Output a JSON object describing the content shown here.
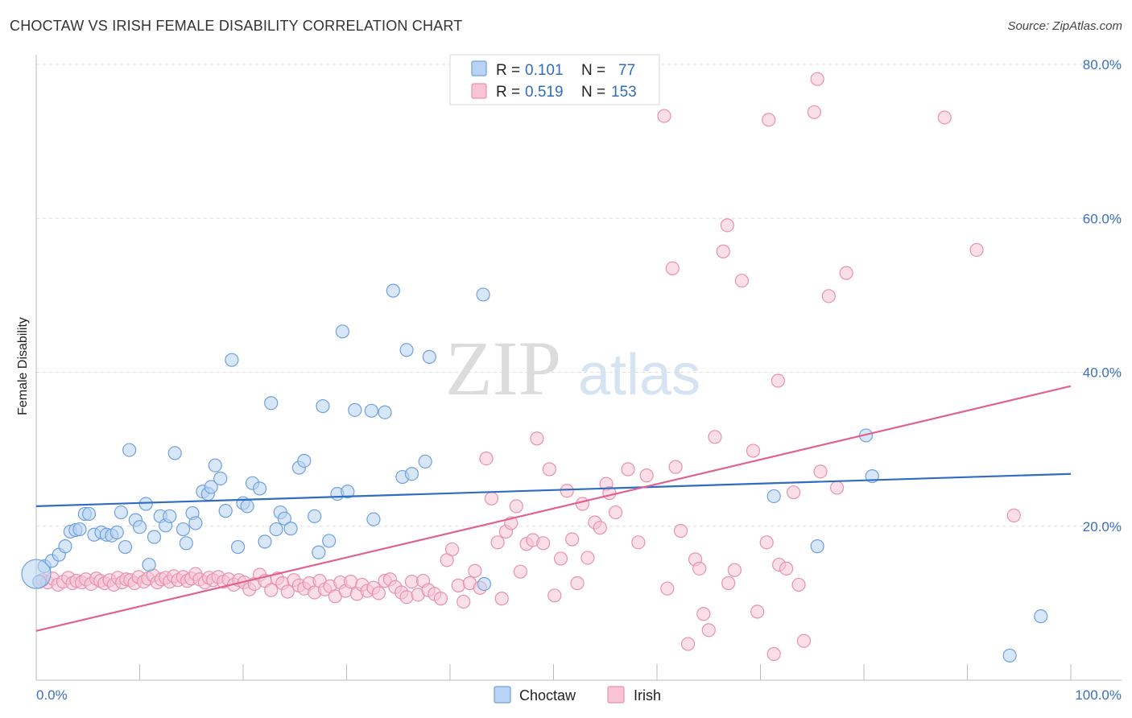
{
  "title": "CHOCTAW VS IRISH FEMALE DISABILITY CORRELATION CHART",
  "source": "Source: ZipAtlas.com",
  "watermark": {
    "zip": "ZIP",
    "atlas": "atlas"
  },
  "colors": {
    "choctaw_fill": "#b8d3f3",
    "choctaw_stroke": "#6fa0dd",
    "choctaw_line": "#2f6cc4",
    "irish_fill": "#f8c4d5",
    "irish_stroke": "#e891ad",
    "irish_line": "#e0628f",
    "grid": "#dddddd",
    "tick_label": "#3a6fc4"
  },
  "legend": {
    "r_label": "R =",
    "n_label": "N =",
    "rows": [
      {
        "series": "Choctaw",
        "r": "0.101",
        "n": "77"
      },
      {
        "series": "Irish",
        "r": "0.519",
        "n": "153"
      }
    ]
  },
  "bottom_legend": [
    "Choctaw",
    "Irish"
  ],
  "chart_data": {
    "type": "scatter",
    "title": "CHOCTAW VS IRISH FEMALE DISABILITY CORRELATION CHART",
    "xlabel": "",
    "ylabel": "Female Disability",
    "xlim": [
      0,
      100
    ],
    "ylim": [
      0,
      80
    ],
    "x_tick_labels": [
      "0.0%",
      "100.0%"
    ],
    "y_ticks": [
      20,
      40,
      60,
      80
    ],
    "y_tick_labels": [
      "20.0%",
      "40.0%",
      "60.0%",
      "80.0%"
    ],
    "grid": true,
    "series": [
      {
        "name": "Choctaw",
        "r": 0.101,
        "n": 77,
        "trend": {
          "x0": 0,
          "y0": 22.6,
          "x1": 100,
          "y1": 26.8
        },
        "points": [
          [
            0.3,
            12.8
          ],
          [
            0.8,
            14.8
          ],
          [
            1.5,
            15.5
          ],
          [
            2.2,
            16.3
          ],
          [
            2.8,
            17.4
          ],
          [
            3.3,
            19.3
          ],
          [
            3.8,
            19.5
          ],
          [
            4.2,
            19.6
          ],
          [
            4.7,
            21.6
          ],
          [
            5.1,
            21.6
          ],
          [
            5.6,
            18.9
          ],
          [
            6.3,
            19.2
          ],
          [
            6.8,
            18.9
          ],
          [
            7.3,
            18.8
          ],
          [
            7.8,
            19.2
          ],
          [
            8.2,
            21.8
          ],
          [
            8.6,
            17.3
          ],
          [
            9.0,
            29.9
          ],
          [
            9.6,
            20.8
          ],
          [
            10.0,
            19.9
          ],
          [
            10.6,
            22.9
          ],
          [
            10.9,
            15.0
          ],
          [
            11.4,
            18.6
          ],
          [
            12.0,
            21.3
          ],
          [
            12.5,
            20.1
          ],
          [
            12.9,
            21.3
          ],
          [
            13.4,
            29.5
          ],
          [
            14.2,
            19.6
          ],
          [
            14.5,
            17.8
          ],
          [
            15.1,
            21.7
          ],
          [
            15.4,
            20.4
          ],
          [
            16.1,
            24.5
          ],
          [
            16.6,
            24.2
          ],
          [
            16.9,
            25.1
          ],
          [
            17.3,
            27.9
          ],
          [
            17.8,
            26.2
          ],
          [
            18.3,
            22.0
          ],
          [
            18.9,
            41.6
          ],
          [
            19.5,
            17.3
          ],
          [
            20.0,
            23.0
          ],
          [
            20.4,
            22.6
          ],
          [
            20.9,
            25.6
          ],
          [
            21.6,
            24.9
          ],
          [
            22.1,
            18.0
          ],
          [
            22.7,
            36.0
          ],
          [
            23.2,
            19.6
          ],
          [
            23.6,
            21.8
          ],
          [
            24.0,
            21.0
          ],
          [
            24.6,
            19.7
          ],
          [
            25.4,
            27.6
          ],
          [
            25.9,
            28.5
          ],
          [
            26.9,
            21.3
          ],
          [
            27.3,
            16.6
          ],
          [
            27.7,
            35.6
          ],
          [
            28.3,
            18.1
          ],
          [
            29.1,
            24.2
          ],
          [
            29.6,
            45.3
          ],
          [
            30.1,
            24.5
          ],
          [
            30.8,
            35.1
          ],
          [
            32.4,
            35.0
          ],
          [
            32.6,
            20.9
          ],
          [
            33.7,
            34.8
          ],
          [
            34.5,
            50.6
          ],
          [
            35.4,
            26.4
          ],
          [
            35.8,
            42.9
          ],
          [
            36.3,
            26.8
          ],
          [
            37.6,
            28.4
          ],
          [
            38.0,
            42.0
          ],
          [
            43.2,
            50.1
          ],
          [
            43.3,
            12.5
          ],
          [
            71.3,
            23.9
          ],
          [
            75.5,
            17.4
          ],
          [
            80.2,
            31.8
          ],
          [
            80.8,
            26.5
          ],
          [
            94.1,
            3.2
          ],
          [
            97.1,
            8.3
          ],
          [
            0.0,
            13.8
          ]
        ]
      },
      {
        "name": "Irish",
        "r": 0.519,
        "n": 153,
        "trend": {
          "x0": 0,
          "y0": 6.4,
          "x1": 100,
          "y1": 38.2
        },
        "points": [
          [
            0.6,
            13.0
          ],
          [
            1.1,
            12.7
          ],
          [
            1.6,
            13.2
          ],
          [
            2.1,
            12.4
          ],
          [
            2.6,
            12.8
          ],
          [
            3.1,
            13.3
          ],
          [
            3.5,
            12.6
          ],
          [
            3.9,
            12.9
          ],
          [
            4.4,
            12.7
          ],
          [
            4.8,
            13.1
          ],
          [
            5.3,
            12.5
          ],
          [
            5.8,
            13.2
          ],
          [
            6.2,
            12.9
          ],
          [
            6.6,
            12.6
          ],
          [
            7.1,
            13.0
          ],
          [
            7.5,
            12.4
          ],
          [
            7.9,
            13.3
          ],
          [
            8.3,
            12.7
          ],
          [
            8.7,
            13.1
          ],
          [
            9.1,
            13.0
          ],
          [
            9.5,
            12.6
          ],
          [
            9.9,
            13.4
          ],
          [
            10.4,
            12.8
          ],
          [
            10.8,
            13.2
          ],
          [
            11.3,
            13.6
          ],
          [
            11.7,
            12.7
          ],
          [
            12.1,
            13.1
          ],
          [
            12.5,
            13.3
          ],
          [
            12.9,
            12.8
          ],
          [
            13.3,
            13.5
          ],
          [
            13.7,
            13.0
          ],
          [
            14.2,
            13.4
          ],
          [
            14.6,
            12.9
          ],
          [
            15.0,
            13.2
          ],
          [
            15.4,
            13.8
          ],
          [
            15.8,
            13.1
          ],
          [
            16.3,
            12.7
          ],
          [
            16.7,
            13.3
          ],
          [
            17.1,
            13.0
          ],
          [
            17.6,
            13.4
          ],
          [
            18.1,
            12.8
          ],
          [
            18.6,
            13.1
          ],
          [
            19.1,
            12.4
          ],
          [
            19.6,
            13.0
          ],
          [
            20.1,
            12.7
          ],
          [
            20.6,
            11.8
          ],
          [
            21.1,
            12.5
          ],
          [
            21.6,
            13.7
          ],
          [
            22.1,
            12.9
          ],
          [
            22.7,
            11.7
          ],
          [
            23.3,
            13.2
          ],
          [
            23.8,
            12.6
          ],
          [
            24.3,
            11.5
          ],
          [
            24.9,
            13.0
          ],
          [
            25.4,
            12.3
          ],
          [
            25.9,
            11.9
          ],
          [
            26.4,
            12.6
          ],
          [
            26.9,
            11.4
          ],
          [
            27.4,
            12.9
          ],
          [
            27.9,
            11.8
          ],
          [
            28.4,
            12.2
          ],
          [
            28.9,
            10.9
          ],
          [
            29.4,
            12.7
          ],
          [
            29.9,
            11.6
          ],
          [
            30.4,
            12.8
          ],
          [
            31.0,
            11.2
          ],
          [
            31.5,
            12.4
          ],
          [
            32.0,
            11.6
          ],
          [
            32.6,
            12.0
          ],
          [
            33.1,
            11.3
          ],
          [
            33.7,
            12.9
          ],
          [
            34.2,
            13.1
          ],
          [
            34.7,
            12.1
          ],
          [
            35.3,
            11.4
          ],
          [
            35.8,
            10.8
          ],
          [
            36.3,
            12.8
          ],
          [
            36.9,
            11.1
          ],
          [
            37.4,
            12.9
          ],
          [
            37.9,
            11.7
          ],
          [
            38.5,
            11.2
          ],
          [
            39.1,
            10.6
          ],
          [
            39.7,
            15.6
          ],
          [
            40.2,
            17.0
          ],
          [
            40.8,
            12.3
          ],
          [
            41.3,
            10.2
          ],
          [
            41.9,
            12.6
          ],
          [
            42.4,
            14.2
          ],
          [
            42.9,
            12.0
          ],
          [
            43.5,
            28.8
          ],
          [
            44.0,
            23.6
          ],
          [
            44.6,
            17.9
          ],
          [
            45.0,
            10.6
          ],
          [
            45.4,
            19.3
          ],
          [
            45.9,
            20.4
          ],
          [
            46.4,
            22.6
          ],
          [
            46.8,
            14.1
          ],
          [
            47.4,
            17.7
          ],
          [
            48.0,
            18.2
          ],
          [
            48.4,
            31.4
          ],
          [
            49.0,
            17.8
          ],
          [
            49.6,
            27.4
          ],
          [
            50.1,
            11.0
          ],
          [
            50.7,
            15.8
          ],
          [
            51.3,
            24.6
          ],
          [
            51.8,
            18.3
          ],
          [
            52.3,
            12.6
          ],
          [
            52.8,
            22.9
          ],
          [
            53.3,
            15.9
          ],
          [
            54.0,
            20.5
          ],
          [
            54.5,
            19.8
          ],
          [
            55.1,
            25.5
          ],
          [
            55.4,
            24.3
          ],
          [
            56.0,
            21.8
          ],
          [
            57.2,
            27.4
          ],
          [
            58.2,
            17.9
          ],
          [
            59.0,
            26.6
          ],
          [
            60.7,
            73.3
          ],
          [
            61.0,
            11.9
          ],
          [
            61.5,
            53.5
          ],
          [
            61.8,
            27.7
          ],
          [
            62.3,
            19.4
          ],
          [
            63.0,
            4.7
          ],
          [
            63.7,
            15.7
          ],
          [
            64.1,
            14.5
          ],
          [
            64.5,
            8.6
          ],
          [
            65.0,
            6.5
          ],
          [
            65.6,
            31.6
          ],
          [
            66.4,
            55.7
          ],
          [
            66.8,
            59.1
          ],
          [
            66.9,
            12.6
          ],
          [
            67.5,
            14.3
          ],
          [
            68.2,
            51.9
          ],
          [
            69.3,
            29.8
          ],
          [
            69.7,
            8.9
          ],
          [
            70.6,
            17.9
          ],
          [
            70.8,
            72.8
          ],
          [
            71.3,
            3.4
          ],
          [
            71.7,
            38.9
          ],
          [
            71.8,
            15.0
          ],
          [
            72.5,
            14.5
          ],
          [
            73.2,
            24.4
          ],
          [
            73.7,
            12.4
          ],
          [
            74.2,
            5.1
          ],
          [
            75.2,
            73.8
          ],
          [
            75.5,
            78.1
          ],
          [
            75.8,
            27.1
          ],
          [
            76.6,
            49.9
          ],
          [
            77.4,
            25.0
          ],
          [
            78.3,
            52.9
          ],
          [
            87.8,
            73.1
          ],
          [
            90.9,
            55.9
          ],
          [
            94.5,
            21.4
          ]
        ]
      }
    ]
  }
}
